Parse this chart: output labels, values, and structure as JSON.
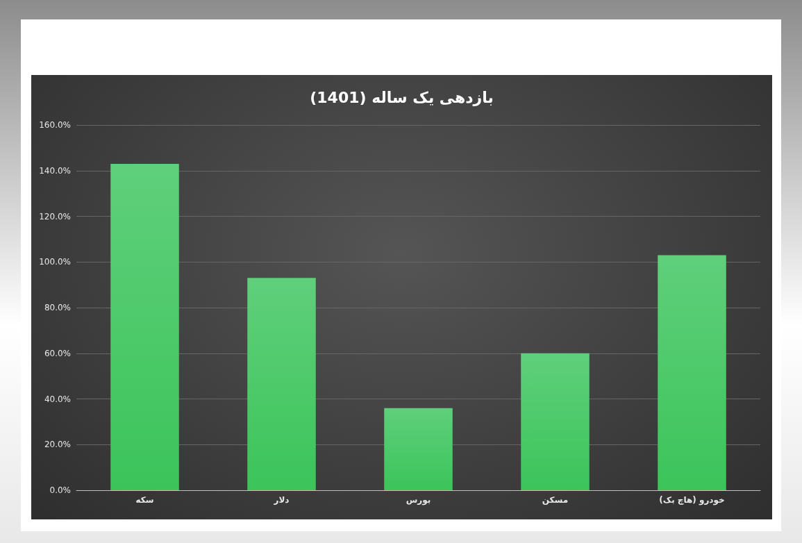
{
  "chart_data": {
    "type": "bar",
    "title": "بازدهی یک ساله (1401)",
    "categories": [
      "سکه",
      "دلار",
      "بورس",
      "مسکن",
      "خودرو (هاچ بک)"
    ],
    "values": [
      143,
      93,
      36,
      60,
      103
    ],
    "color": "#3cc45a",
    "ylim": [
      0,
      160
    ],
    "yticks": [
      {
        "value": 0,
        "label": "0.0%"
      },
      {
        "value": 20,
        "label": "20.0%"
      },
      {
        "value": 40,
        "label": "40.0%"
      },
      {
        "value": 60,
        "label": "60.0%"
      },
      {
        "value": 80,
        "label": "80.0%"
      },
      {
        "value": 100,
        "label": "100.0%"
      },
      {
        "value": 120,
        "label": "120.0%"
      },
      {
        "value": 140,
        "label": "140.0%"
      },
      {
        "value": 160,
        "label": "160.0%"
      }
    ],
    "grid": "y"
  }
}
